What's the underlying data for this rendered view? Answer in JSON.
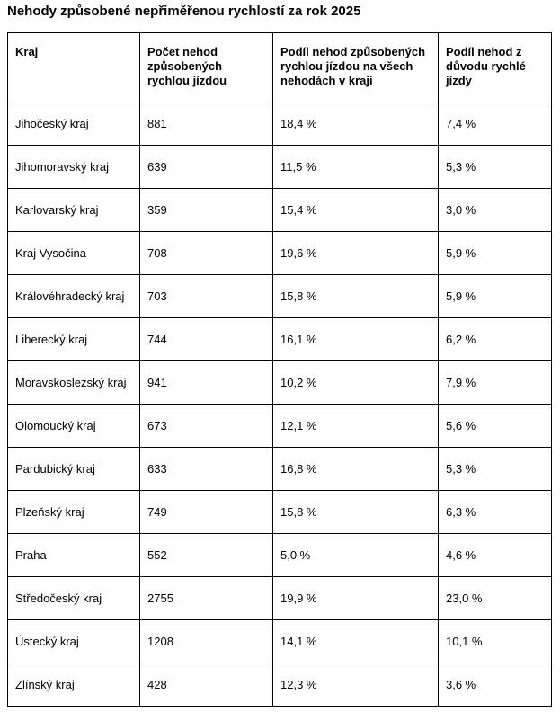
{
  "page": {
    "title": "Nehody způsobené nepřiměřenou rychlostí za rok 2025"
  },
  "colors": {
    "background": "#ffffff",
    "text": "#000000",
    "border": "#000000"
  },
  "table": {
    "columns": [
      "Kraj",
      "Počet nehod způsobených rychlou jízdou",
      "Podíl nehod způsobených rychlou jízdou na všech nehodách v kraji",
      "Podíl nehod z důvodu rychlé jízdy"
    ],
    "rows": [
      [
        "Jihočeský kraj",
        "881",
        "18,4 %",
        "7,4 %"
      ],
      [
        "Jihomoravský kraj",
        "639",
        "11,5 %",
        "5,3 %"
      ],
      [
        "Karlovarský kraj",
        "359",
        "15,4 %",
        "3,0 %"
      ],
      [
        "Kraj Vysočina",
        "708",
        "19,6 %",
        "5,9 %"
      ],
      [
        "Královéhradecký kraj",
        "703",
        "15,8 %",
        "5,9 %"
      ],
      [
        "Liberecký kraj",
        "744",
        "16,1 %",
        "6,2 %"
      ],
      [
        "Moravskoslezský kraj",
        "941",
        "10,2 %",
        "7,9 %"
      ],
      [
        "Olomoucký kraj",
        "673",
        "12,1 %",
        "5,6 %"
      ],
      [
        "Pardubický kraj",
        "633",
        "16,8 %",
        "5,3 %"
      ],
      [
        "Plzeňský kraj",
        "749",
        "15,8 %",
        "6,3 %"
      ],
      [
        "Praha",
        "552",
        "5,0 %",
        "4,6 %"
      ],
      [
        "Středočeský kraj",
        "2755",
        "19,9 %",
        "23,0 %"
      ],
      [
        "Ústecký kraj",
        "1208",
        "14,1 %",
        "10,1 %"
      ],
      [
        "Zlínský kraj",
        "428",
        "12,3 %",
        "3,6 %"
      ]
    ]
  }
}
